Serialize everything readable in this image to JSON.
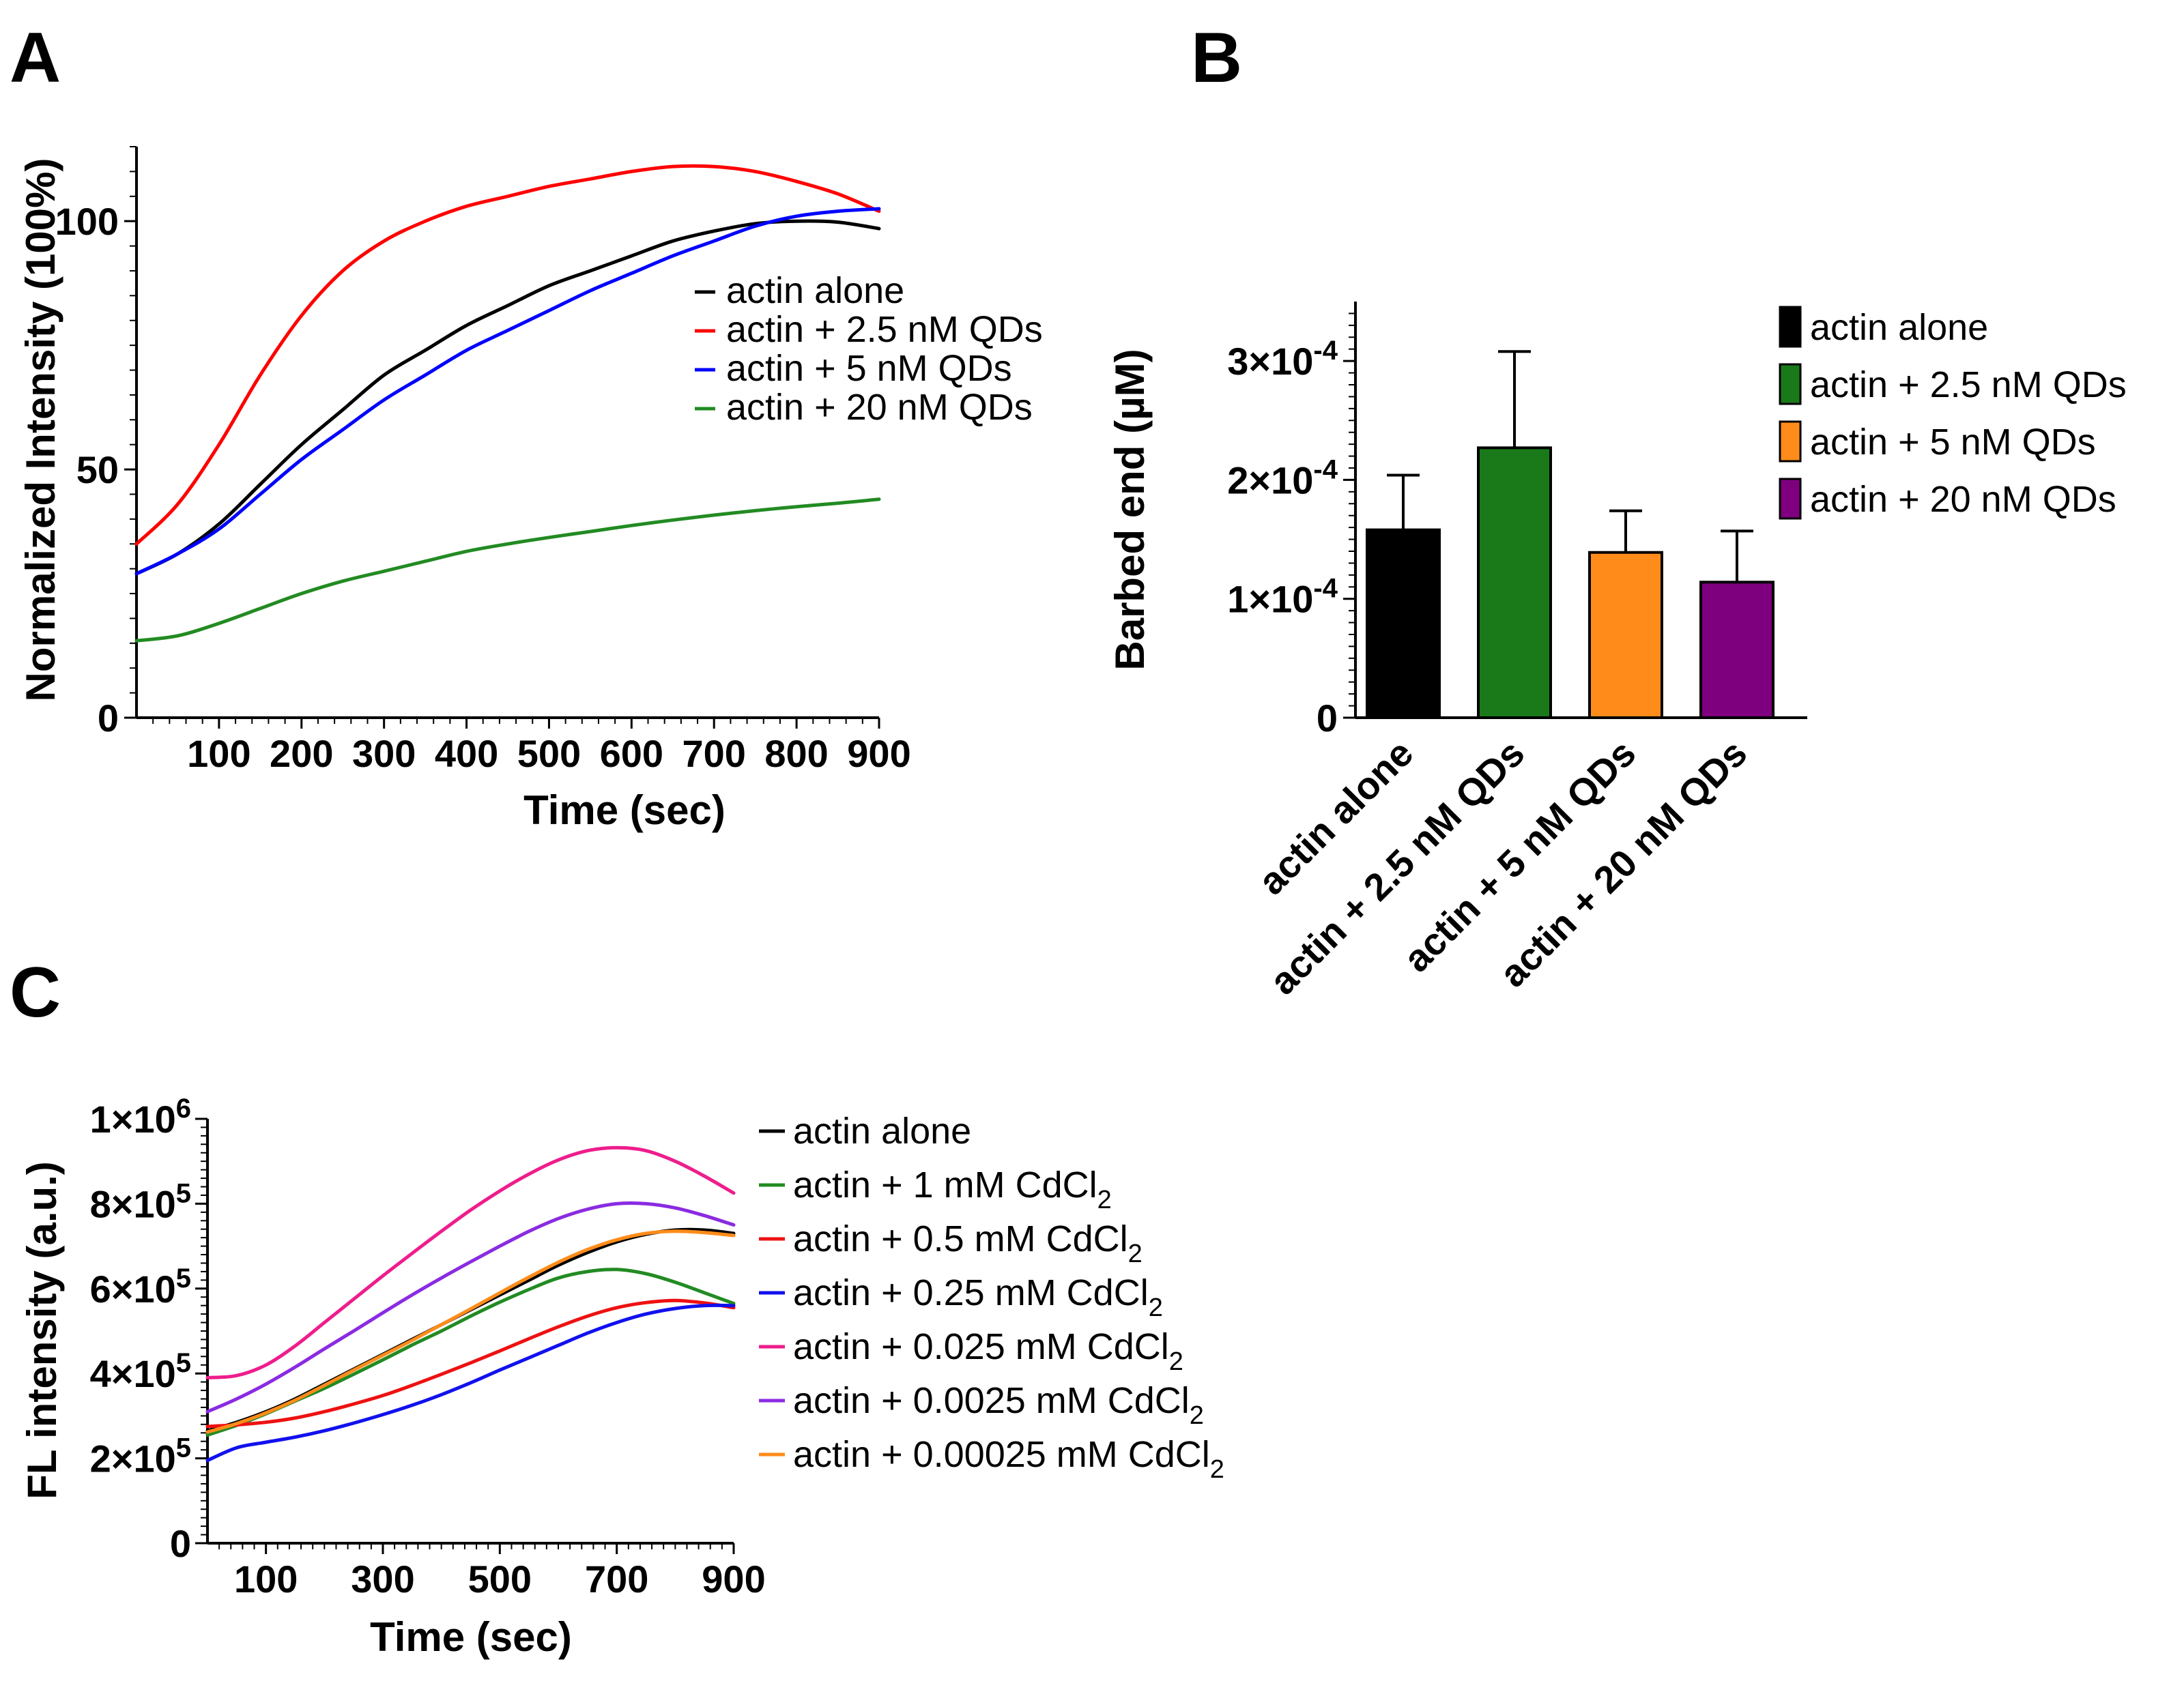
{
  "panel_labels": [
    "A",
    "B",
    "C"
  ],
  "chart_data": [
    {
      "panel": "A",
      "type": "line",
      "title": "",
      "xlabel": "Time (sec)",
      "ylabel": "Normalized Intensity (100%)",
      "xlim": [
        0,
        900
      ],
      "ylim": [
        0,
        115
      ],
      "xticks": [
        100,
        200,
        300,
        400,
        500,
        600,
        700,
        800,
        900
      ],
      "yticks": [
        0,
        50,
        100
      ],
      "legend_position": "right-middle",
      "series": [
        {
          "name": "actin alone",
          "color": "#000000",
          "x": [
            0,
            50,
            100,
            150,
            200,
            250,
            300,
            350,
            400,
            450,
            500,
            550,
            600,
            650,
            700,
            750,
            800,
            850,
            900
          ],
          "y": [
            29,
            33,
            39,
            47,
            55,
            62,
            69,
            74,
            79,
            83,
            87,
            90,
            93,
            96,
            98,
            99.5,
            100,
            99.8,
            98.5
          ]
        },
        {
          "name": "actin + 2.5 nM QDs",
          "color": "#ff0000",
          "x": [
            0,
            50,
            100,
            150,
            200,
            250,
            300,
            350,
            400,
            450,
            500,
            550,
            600,
            650,
            700,
            750,
            800,
            850,
            900
          ],
          "y": [
            35,
            43,
            55,
            69,
            81,
            90,
            96,
            100,
            103,
            105,
            107,
            108.5,
            110,
            111,
            111,
            110,
            108,
            105.5,
            102
          ]
        },
        {
          "name": "actin + 5 nM QDs",
          "color": "#0000ff",
          "x": [
            0,
            50,
            100,
            150,
            200,
            250,
            300,
            350,
            400,
            450,
            500,
            550,
            600,
            650,
            700,
            750,
            800,
            850,
            900
          ],
          "y": [
            29,
            33,
            38,
            45,
            52,
            58,
            64,
            69,
            74,
            78,
            82,
            86,
            89.5,
            93,
            96,
            99,
            101,
            102,
            102.5
          ]
        },
        {
          "name": "actin + 20 nM QDs",
          "color": "#228b22",
          "x": [
            0,
            50,
            100,
            150,
            200,
            250,
            300,
            350,
            400,
            450,
            500,
            550,
            600,
            650,
            700,
            750,
            800,
            850,
            900
          ],
          "y": [
            15.5,
            16.5,
            19,
            22,
            25,
            27.5,
            29.5,
            31.5,
            33.5,
            35,
            36.3,
            37.5,
            38.7,
            39.8,
            40.8,
            41.7,
            42.5,
            43.2,
            44
          ]
        }
      ]
    },
    {
      "panel": "B",
      "type": "bar",
      "title": "",
      "xlabel": "",
      "ylabel": "Barbed end (µM)",
      "ylim": [
        0,
        0.00035
      ],
      "ytick_values": [
        0,
        0.0001,
        0.0002,
        0.0003
      ],
      "ytick_labels": [
        {
          "base": "0",
          "exp": ""
        },
        {
          "base": "1×10",
          "exp": "-4"
        },
        {
          "base": "2×10",
          "exp": "-4"
        },
        {
          "base": "3×10",
          "exp": "-4"
        }
      ],
      "categories": [
        "actin alone",
        "actin + 2.5 nM QDs",
        "actin + 5 nM QDs",
        "actin + 20 nM QDs"
      ],
      "values": [
        0.000158,
        0.000227,
        0.000139,
        0.000114
      ],
      "errors": [
        4.6e-05,
        8.1e-05,
        3.5e-05,
        4.3e-05
      ],
      "colors": [
        "#000000",
        "#1a7a1a",
        "#ff8c1a",
        "#7f007f"
      ],
      "legend_position": "top-right"
    },
    {
      "panel": "C",
      "type": "line",
      "title": "",
      "xlabel": "Time (sec)",
      "ylabel": "FL intensity (a.u.)",
      "xlim": [
        0,
        900
      ],
      "ylim": [
        0,
        1000000
      ],
      "xticks": [
        100,
        300,
        500,
        700,
        900
      ],
      "ytick_values": [
        0,
        200000,
        400000,
        600000,
        800000,
        1000000
      ],
      "ytick_labels": [
        {
          "base": "0",
          "exp": ""
        },
        {
          "base": "2×10",
          "exp": "5"
        },
        {
          "base": "4×10",
          "exp": "5"
        },
        {
          "base": "6×10",
          "exp": "5"
        },
        {
          "base": "8×10",
          "exp": "5"
        },
        {
          "base": "1×10",
          "exp": "6"
        }
      ],
      "legend_position": "right",
      "series": [
        {
          "name": "actin alone",
          "label_prefix": "actin alone",
          "label_sub": "",
          "color": "#000000",
          "x": [
            0,
            50,
            100,
            150,
            200,
            250,
            300,
            350,
            400,
            450,
            500,
            550,
            600,
            650,
            700,
            750,
            800,
            850,
            900
          ],
          "y": [
            265000,
            285000,
            310000,
            340000,
            375000,
            410000,
            445000,
            480000,
            515000,
            550000,
            585000,
            620000,
            655000,
            685000,
            710000,
            728000,
            738000,
            738000,
            730000
          ]
        },
        {
          "name": "actin + 1 mM CdCl2",
          "label_prefix": "actin + 1 mM CdCl",
          "label_sub": "2",
          "color": "#228b22",
          "x": [
            0,
            50,
            100,
            150,
            200,
            250,
            300,
            350,
            400,
            450,
            500,
            550,
            600,
            650,
            700,
            750,
            800,
            850,
            900
          ],
          "y": [
            255000,
            278000,
            305000,
            335000,
            365000,
            398000,
            432000,
            467000,
            500000,
            535000,
            568000,
            598000,
            625000,
            640000,
            645000,
            635000,
            615000,
            590000,
            565000
          ]
        },
        {
          "name": "actin + 0.5 mM CdCl2",
          "label_prefix": "actin + 0.5 mM CdCl",
          "label_sub": "2",
          "color": "#ee1111",
          "x": [
            0,
            50,
            100,
            150,
            200,
            250,
            300,
            350,
            400,
            450,
            500,
            550,
            600,
            650,
            700,
            750,
            800,
            850,
            900
          ],
          "y": [
            275000,
            279000,
            285000,
            295000,
            310000,
            328000,
            348000,
            372000,
            398000,
            425000,
            453000,
            482000,
            510000,
            535000,
            555000,
            567000,
            572000,
            566000,
            555000
          ]
        },
        {
          "name": "actin + 0.25 mM CdCl2",
          "label_prefix": "actin + 0.25 mM CdCl",
          "label_sub": "2",
          "color": "#1111ee",
          "x": [
            0,
            50,
            100,
            150,
            200,
            250,
            300,
            350,
            400,
            450,
            500,
            550,
            600,
            650,
            700,
            750,
            800,
            850,
            900
          ],
          "y": [
            195000,
            225000,
            238000,
            250000,
            265000,
            283000,
            303000,
            325000,
            350000,
            378000,
            408000,
            437000,
            466000,
            495000,
            520000,
            540000,
            553000,
            560000,
            560000
          ]
        },
        {
          "name": "actin + 0.025 mM CdCl2",
          "label_prefix": "actin + 0.025 mM CdCl",
          "label_sub": "2",
          "color": "#ee1d8c",
          "x": [
            0,
            50,
            100,
            150,
            200,
            250,
            300,
            350,
            400,
            450,
            500,
            550,
            600,
            650,
            700,
            750,
            800,
            850,
            900
          ],
          "y": [
            390000,
            395000,
            420000,
            465000,
            520000,
            575000,
            630000,
            683000,
            735000,
            785000,
            830000,
            870000,
            903000,
            925000,
            932000,
            925000,
            900000,
            865000,
            825000
          ]
        },
        {
          "name": "actin + 0.0025 mM CdCl2",
          "label_prefix": "actin + 0.0025 mM CdCl",
          "label_sub": "2",
          "color": "#8a2be2",
          "x": [
            0,
            50,
            100,
            150,
            200,
            250,
            300,
            350,
            400,
            450,
            500,
            550,
            600,
            650,
            700,
            750,
            800,
            850,
            900
          ],
          "y": [
            310000,
            340000,
            375000,
            415000,
            458000,
            500000,
            543000,
            585000,
            625000,
            663000,
            700000,
            735000,
            765000,
            787000,
            800000,
            800000,
            790000,
            772000,
            750000
          ]
        },
        {
          "name": "actin + 0.00025 mM CdCl2",
          "label_prefix": "actin + 0.00025 mM CdCl",
          "label_sub": "2",
          "color": "#ff8c1a",
          "x": [
            0,
            50,
            100,
            150,
            200,
            250,
            300,
            350,
            400,
            450,
            500,
            550,
            600,
            650,
            700,
            750,
            800,
            850,
            900
          ],
          "y": [
            262000,
            282000,
            307000,
            337000,
            372000,
            408000,
            443000,
            478000,
            515000,
            552000,
            590000,
            627000,
            662000,
            692000,
            715000,
            730000,
            735000,
            732000,
            725000
          ]
        }
      ]
    }
  ]
}
